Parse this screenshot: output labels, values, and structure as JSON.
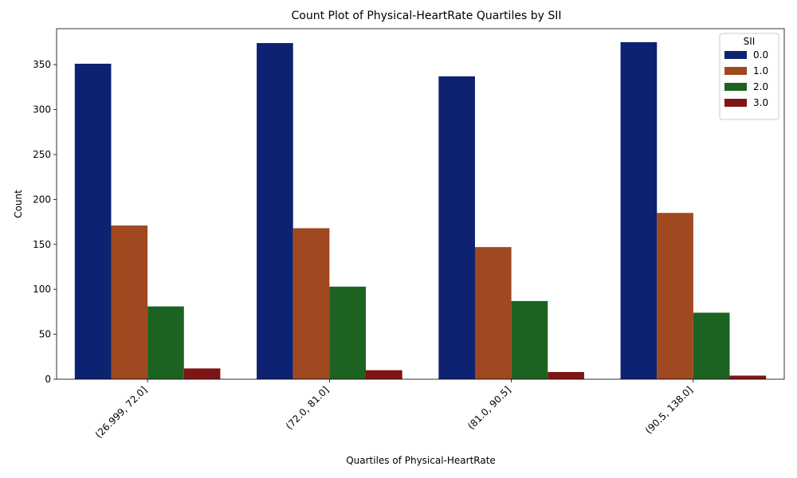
{
  "chart_data": {
    "type": "bar",
    "title": "Count Plot of Physical-HeartRate Quartiles by SII",
    "xlabel": "Quartiles of Physical-HeartRate",
    "ylabel": "Count",
    "categories": [
      "(26.999, 72.0]",
      "(72.0, 81.0]",
      "(81.0, 90.5]",
      "(90.5, 138.0]"
    ],
    "ylim": [
      0,
      390
    ],
    "yticks": [
      0,
      50,
      100,
      150,
      200,
      250,
      300,
      350
    ],
    "grid": false,
    "legend": {
      "title": "SII",
      "placement": "top-right"
    },
    "series": [
      {
        "name": "0.0",
        "color": "#0d2270",
        "values": [
          351,
          374,
          337,
          375
        ]
      },
      {
        "name": "1.0",
        "color": "#a0481f",
        "values": [
          171,
          168,
          147,
          185
        ]
      },
      {
        "name": "2.0",
        "color": "#1c6322",
        "values": [
          81,
          103,
          87,
          74
        ]
      },
      {
        "name": "3.0",
        "color": "#7f1414",
        "values": [
          12,
          10,
          8,
          4
        ]
      }
    ]
  }
}
